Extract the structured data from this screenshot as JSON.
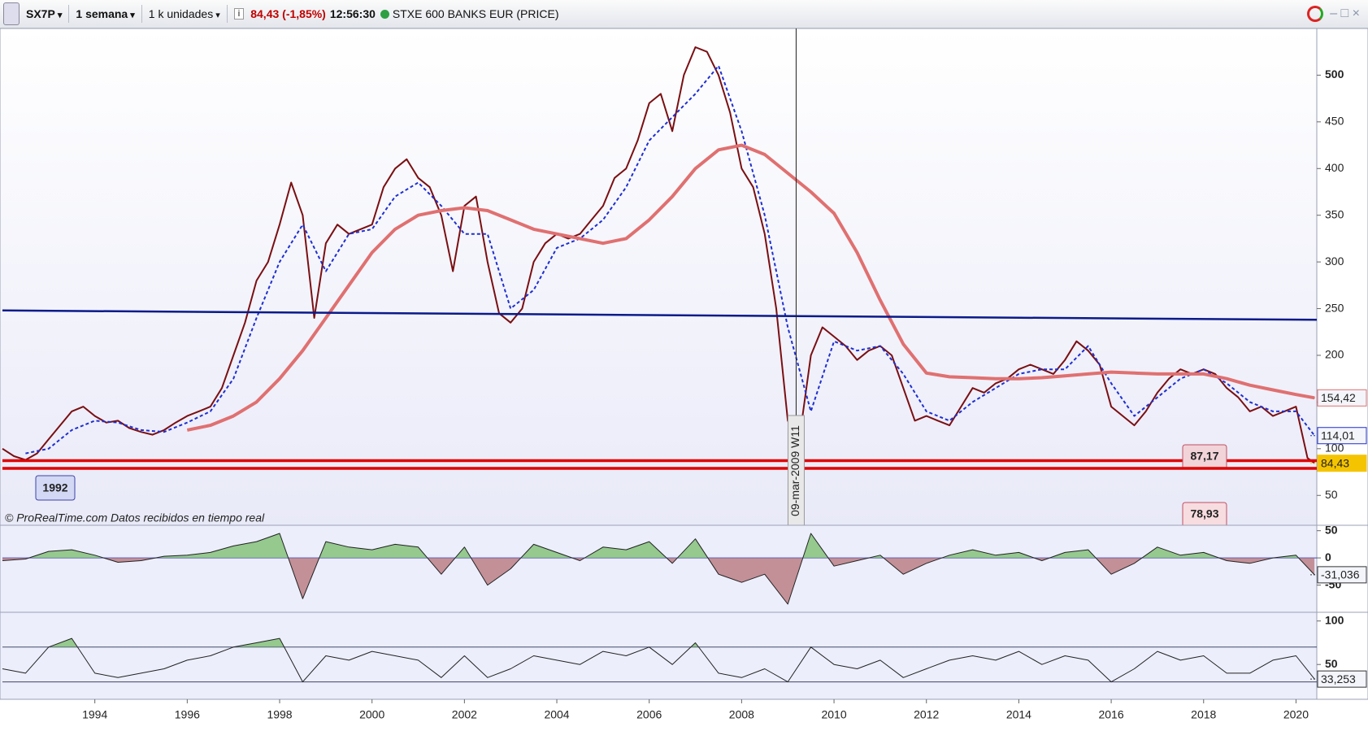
{
  "toolbar": {
    "symbol": "SX7P",
    "period": "1 semana",
    "units": "1 k unidades",
    "price": "84,43 (-1,85%)",
    "time": "12:56:30",
    "name": "STXE 600 BANKS EUR (PRICE)"
  },
  "chart_data": [
    {
      "type": "line",
      "xlim": [
        1992,
        2020.45
      ],
      "ylim": [
        18,
        550
      ],
      "yticks": [
        50,
        100,
        150,
        200,
        250,
        300,
        350,
        400,
        450,
        500
      ],
      "credit": "© ProRealTime.com  Datos recibidos en tiempo real",
      "series": [
        {
          "name": "SX7P",
          "color": "#7a0f12",
          "width": 2,
          "x": [
            1992,
            1992.25,
            1992.5,
            1992.75,
            1993,
            1993.25,
            1993.5,
            1993.75,
            1994,
            1994.25,
            1994.5,
            1994.75,
            1995,
            1995.25,
            1995.5,
            1995.75,
            1996,
            1996.25,
            1996.5,
            1996.75,
            1997,
            1997.25,
            1997.5,
            1997.75,
            1998,
            1998.25,
            1998.5,
            1998.75,
            1999,
            1999.25,
            1999.5,
            1999.75,
            2000,
            2000.25,
            2000.5,
            2000.75,
            2001,
            2001.25,
            2001.5,
            2001.75,
            2002,
            2002.25,
            2002.5,
            2002.75,
            2003,
            2003.25,
            2003.5,
            2003.75,
            2004,
            2004.25,
            2004.5,
            2004.75,
            2005,
            2005.25,
            2005.5,
            2005.75,
            2006,
            2006.25,
            2006.5,
            2006.75,
            2007,
            2007.25,
            2007.5,
            2007.75,
            2008,
            2008.25,
            2008.5,
            2008.75,
            2009,
            2009.25,
            2009.5,
            2009.75,
            2010,
            2010.25,
            2010.5,
            2010.75,
            2011,
            2011.25,
            2011.5,
            2011.75,
            2012,
            2012.25,
            2012.5,
            2012.75,
            2013,
            2013.25,
            2013.5,
            2013.75,
            2014,
            2014.25,
            2014.5,
            2014.75,
            2015,
            2015.25,
            2015.5,
            2015.75,
            2016,
            2016.25,
            2016.5,
            2016.75,
            2017,
            2017.25,
            2017.5,
            2017.75,
            2018,
            2018.25,
            2018.5,
            2018.75,
            2019,
            2019.25,
            2019.5,
            2019.75,
            2020,
            2020.25,
            2020.4
          ],
          "values": [
            100,
            92,
            88,
            95,
            110,
            125,
            140,
            145,
            135,
            128,
            130,
            122,
            118,
            115,
            120,
            128,
            135,
            140,
            145,
            165,
            200,
            235,
            280,
            300,
            340,
            385,
            350,
            240,
            320,
            340,
            330,
            335,
            340,
            380,
            400,
            410,
            390,
            380,
            350,
            290,
            360,
            370,
            300,
            245,
            235,
            250,
            300,
            320,
            330,
            325,
            330,
            345,
            360,
            390,
            400,
            430,
            470,
            480,
            440,
            500,
            530,
            525,
            500,
            460,
            400,
            380,
            330,
            250,
            130,
            110,
            200,
            230,
            220,
            210,
            195,
            205,
            210,
            200,
            165,
            130,
            135,
            130,
            125,
            145,
            165,
            160,
            170,
            175,
            185,
            190,
            185,
            180,
            195,
            215,
            205,
            190,
            145,
            135,
            125,
            140,
            160,
            175,
            185,
            180,
            185,
            180,
            165,
            155,
            140,
            145,
            135,
            140,
            145,
            90,
            84.43
          ]
        },
        {
          "name": "MA corta",
          "color": "#1f2fd0",
          "width": 2,
          "dash": "4 3",
          "x": [
            1992.5,
            1993,
            1993.5,
            1994,
            1994.5,
            1995,
            1995.5,
            1996,
            1996.5,
            1997,
            1997.5,
            1998,
            1998.5,
            1999,
            1999.5,
            2000,
            2000.5,
            2001,
            2001.5,
            2002,
            2002.5,
            2003,
            2003.5,
            2004,
            2004.5,
            2005,
            2005.5,
            2006,
            2006.5,
            2007,
            2007.5,
            2008,
            2008.5,
            2009,
            2009.5,
            2010,
            2010.5,
            2011,
            2011.5,
            2012,
            2012.5,
            2013,
            2013.5,
            2014,
            2014.5,
            2015,
            2015.5,
            2016,
            2016.5,
            2017,
            2017.5,
            2018,
            2018.5,
            2019,
            2019.5,
            2020,
            2020.4
          ],
          "values": [
            95,
            100,
            120,
            130,
            128,
            120,
            118,
            128,
            140,
            175,
            240,
            300,
            340,
            290,
            330,
            335,
            370,
            385,
            360,
            330,
            330,
            250,
            270,
            315,
            325,
            345,
            380,
            430,
            455,
            480,
            510,
            440,
            350,
            230,
            140,
            215,
            205,
            210,
            180,
            140,
            130,
            150,
            165,
            180,
            185,
            185,
            210,
            170,
            135,
            155,
            175,
            185,
            170,
            150,
            140,
            140,
            114.01
          ]
        },
        {
          "name": "MA larga",
          "color": "#e07070",
          "width": 4,
          "x": [
            1996,
            1996.5,
            1997,
            1997.5,
            1998,
            1998.5,
            1999,
            1999.5,
            2000,
            2000.5,
            2001,
            2001.5,
            2002,
            2002.5,
            2003,
            2003.5,
            2004,
            2004.5,
            2005,
            2005.5,
            2006,
            2006.5,
            2007,
            2007.5,
            2008,
            2008.5,
            2009,
            2009.5,
            2010,
            2010.5,
            2011,
            2011.5,
            2012,
            2012.5,
            2013,
            2013.5,
            2014,
            2014.5,
            2015,
            2015.5,
            2016,
            2016.5,
            2017,
            2017.5,
            2018,
            2018.5,
            2019,
            2019.5,
            2020,
            2020.4
          ],
          "values": [
            120,
            125,
            135,
            150,
            175,
            205,
            240,
            275,
            310,
            335,
            350,
            355,
            358,
            355,
            345,
            335,
            330,
            325,
            320,
            325,
            345,
            370,
            400,
            420,
            425,
            415,
            395,
            375,
            352,
            310,
            259,
            212,
            181,
            177,
            176,
            175,
            175,
            176,
            178,
            180,
            182,
            181,
            180,
            180,
            180,
            175,
            168,
            163,
            158,
            154.42
          ]
        }
      ],
      "trendline": {
        "x": [
          1992,
          2020.45
        ],
        "values": [
          248,
          238
        ],
        "color": "#0a1a8a"
      },
      "hlines": [
        {
          "value": 87.17,
          "label": "87,17",
          "color": "#e00000"
        },
        {
          "value": 78.93,
          "label": "78,93",
          "color": "#e00000"
        }
      ],
      "vline": {
        "x": 2009.18,
        "label": "09-mar-2009 W11"
      },
      "start_label": "1992",
      "last_labels": [
        {
          "value": 154.42,
          "label": "154,42",
          "color": "#e07070"
        },
        {
          "value": 114.01,
          "label": "114,01",
          "color": "#1f2fd0"
        },
        {
          "value": 84.43,
          "label": "84,43",
          "color": "#f5c400"
        }
      ]
    },
    {
      "type": "area",
      "xlim": [
        1992,
        2020.45
      ],
      "ylim": [
        -100,
        60
      ],
      "yticks": [
        50,
        0,
        -50
      ],
      "levels": [
        0
      ],
      "series": [
        {
          "name": "Oscilador",
          "color": "#222222",
          "x": [
            1992,
            1992.5,
            1993,
            1993.5,
            1994,
            1994.5,
            1995,
            1995.5,
            1996,
            1996.5,
            1997,
            1997.5,
            1998,
            1998.5,
            1999,
            1999.5,
            2000,
            2000.5,
            2001,
            2001.5,
            2002,
            2002.5,
            2003,
            2003.5,
            2004,
            2004.5,
            2005,
            2005.5,
            2006,
            2006.5,
            2007,
            2007.5,
            2008,
            2008.5,
            2009,
            2009.5,
            2010,
            2010.5,
            2011,
            2011.5,
            2012,
            2012.5,
            2013,
            2013.5,
            2014,
            2014.5,
            2015,
            2015.5,
            2016,
            2016.5,
            2017,
            2017.5,
            2018,
            2018.5,
            2019,
            2019.5,
            2020,
            2020.4
          ],
          "values": [
            -5,
            -2,
            12,
            15,
            5,
            -8,
            -5,
            3,
            5,
            10,
            22,
            30,
            45,
            -75,
            30,
            20,
            15,
            25,
            20,
            -30,
            20,
            -50,
            -20,
            25,
            10,
            -5,
            20,
            15,
            30,
            -10,
            35,
            -30,
            -45,
            -30,
            -85,
            45,
            -15,
            -5,
            5,
            -30,
            -10,
            5,
            15,
            5,
            10,
            -5,
            10,
            15,
            -30,
            -10,
            20,
            5,
            10,
            -5,
            -10,
            0,
            5,
            -31.036
          ]
        }
      ],
      "last_labels": [
        {
          "value": -31.036,
          "label": "-31,036",
          "color": "#333333"
        }
      ]
    },
    {
      "type": "area",
      "xlim": [
        1992,
        2020.45
      ],
      "ylim": [
        10,
        110
      ],
      "yticks": [
        100,
        50
      ],
      "levels": [
        70,
        30
      ],
      "xticks": [
        1994,
        1996,
        1998,
        2000,
        2002,
        2004,
        2006,
        2008,
        2010,
        2012,
        2014,
        2016,
        2018,
        2020
      ],
      "series": [
        {
          "name": "RSI",
          "color": "#222222",
          "x": [
            1992,
            1992.5,
            1993,
            1993.5,
            1994,
            1994.5,
            1995,
            1995.5,
            1996,
            1996.5,
            1997,
            1997.5,
            1998,
            1998.5,
            1999,
            1999.5,
            2000,
            2000.5,
            2001,
            2001.5,
            2002,
            2002.5,
            2003,
            2003.5,
            2004,
            2004.5,
            2005,
            2005.5,
            2006,
            2006.5,
            2007,
            2007.5,
            2008,
            2008.5,
            2009,
            2009.5,
            2010,
            2010.5,
            2011,
            2011.5,
            2012,
            2012.5,
            2013,
            2013.5,
            2014,
            2014.5,
            2015,
            2015.5,
            2016,
            2016.5,
            2017,
            2017.5,
            2018,
            2018.5,
            2019,
            2019.5,
            2020,
            2020.4
          ],
          "values": [
            45,
            40,
            70,
            80,
            40,
            35,
            40,
            45,
            55,
            60,
            70,
            75,
            80,
            30,
            60,
            55,
            65,
            60,
            55,
            35,
            60,
            35,
            45,
            60,
            55,
            50,
            65,
            60,
            70,
            50,
            75,
            40,
            35,
            45,
            30,
            70,
            50,
            45,
            55,
            35,
            45,
            55,
            60,
            55,
            65,
            50,
            60,
            55,
            30,
            45,
            65,
            55,
            60,
            40,
            40,
            55,
            60,
            33.253
          ]
        }
      ],
      "last_labels": [
        {
          "value": 33.253,
          "label": "33,253",
          "color": "#333333"
        }
      ]
    }
  ]
}
